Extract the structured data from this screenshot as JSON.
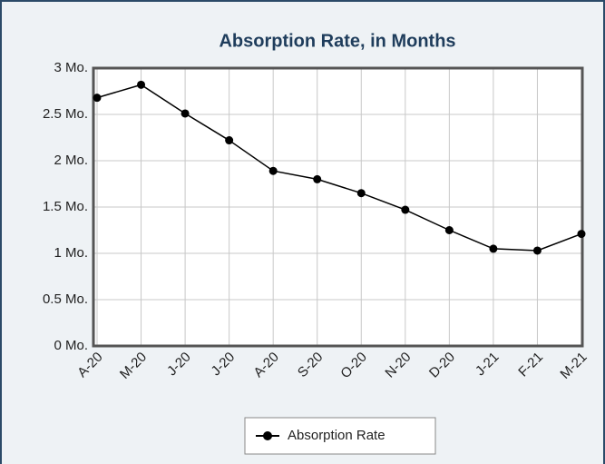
{
  "chart_data": {
    "type": "line",
    "title": "Absorption Rate, in Months",
    "categories": [
      "A-20",
      "M-20",
      "J-20",
      "J-20",
      "A-20",
      "S-20",
      "O-20",
      "N-20",
      "D-20",
      "J-21",
      "F-21",
      "M-21"
    ],
    "series": [
      {
        "name": "Absorption Rate",
        "color": "#000000",
        "values": [
          2.68,
          2.82,
          2.51,
          2.22,
          1.89,
          1.8,
          1.65,
          1.47,
          1.25,
          1.05,
          1.03,
          1.21
        ]
      }
    ],
    "ylim": [
      0,
      3
    ],
    "yticks": [
      {
        "value": 0,
        "label": "0 Mo."
      },
      {
        "value": 0.5,
        "label": "0.5 Mo."
      },
      {
        "value": 1,
        "label": "1 Mo."
      },
      {
        "value": 1.5,
        "label": "1.5 Mo."
      },
      {
        "value": 2,
        "label": "2 Mo."
      },
      {
        "value": 2.5,
        "label": "2.5 Mo."
      },
      {
        "value": 3,
        "label": "3 Mo."
      }
    ],
    "grid": true,
    "legend": "bottom"
  }
}
